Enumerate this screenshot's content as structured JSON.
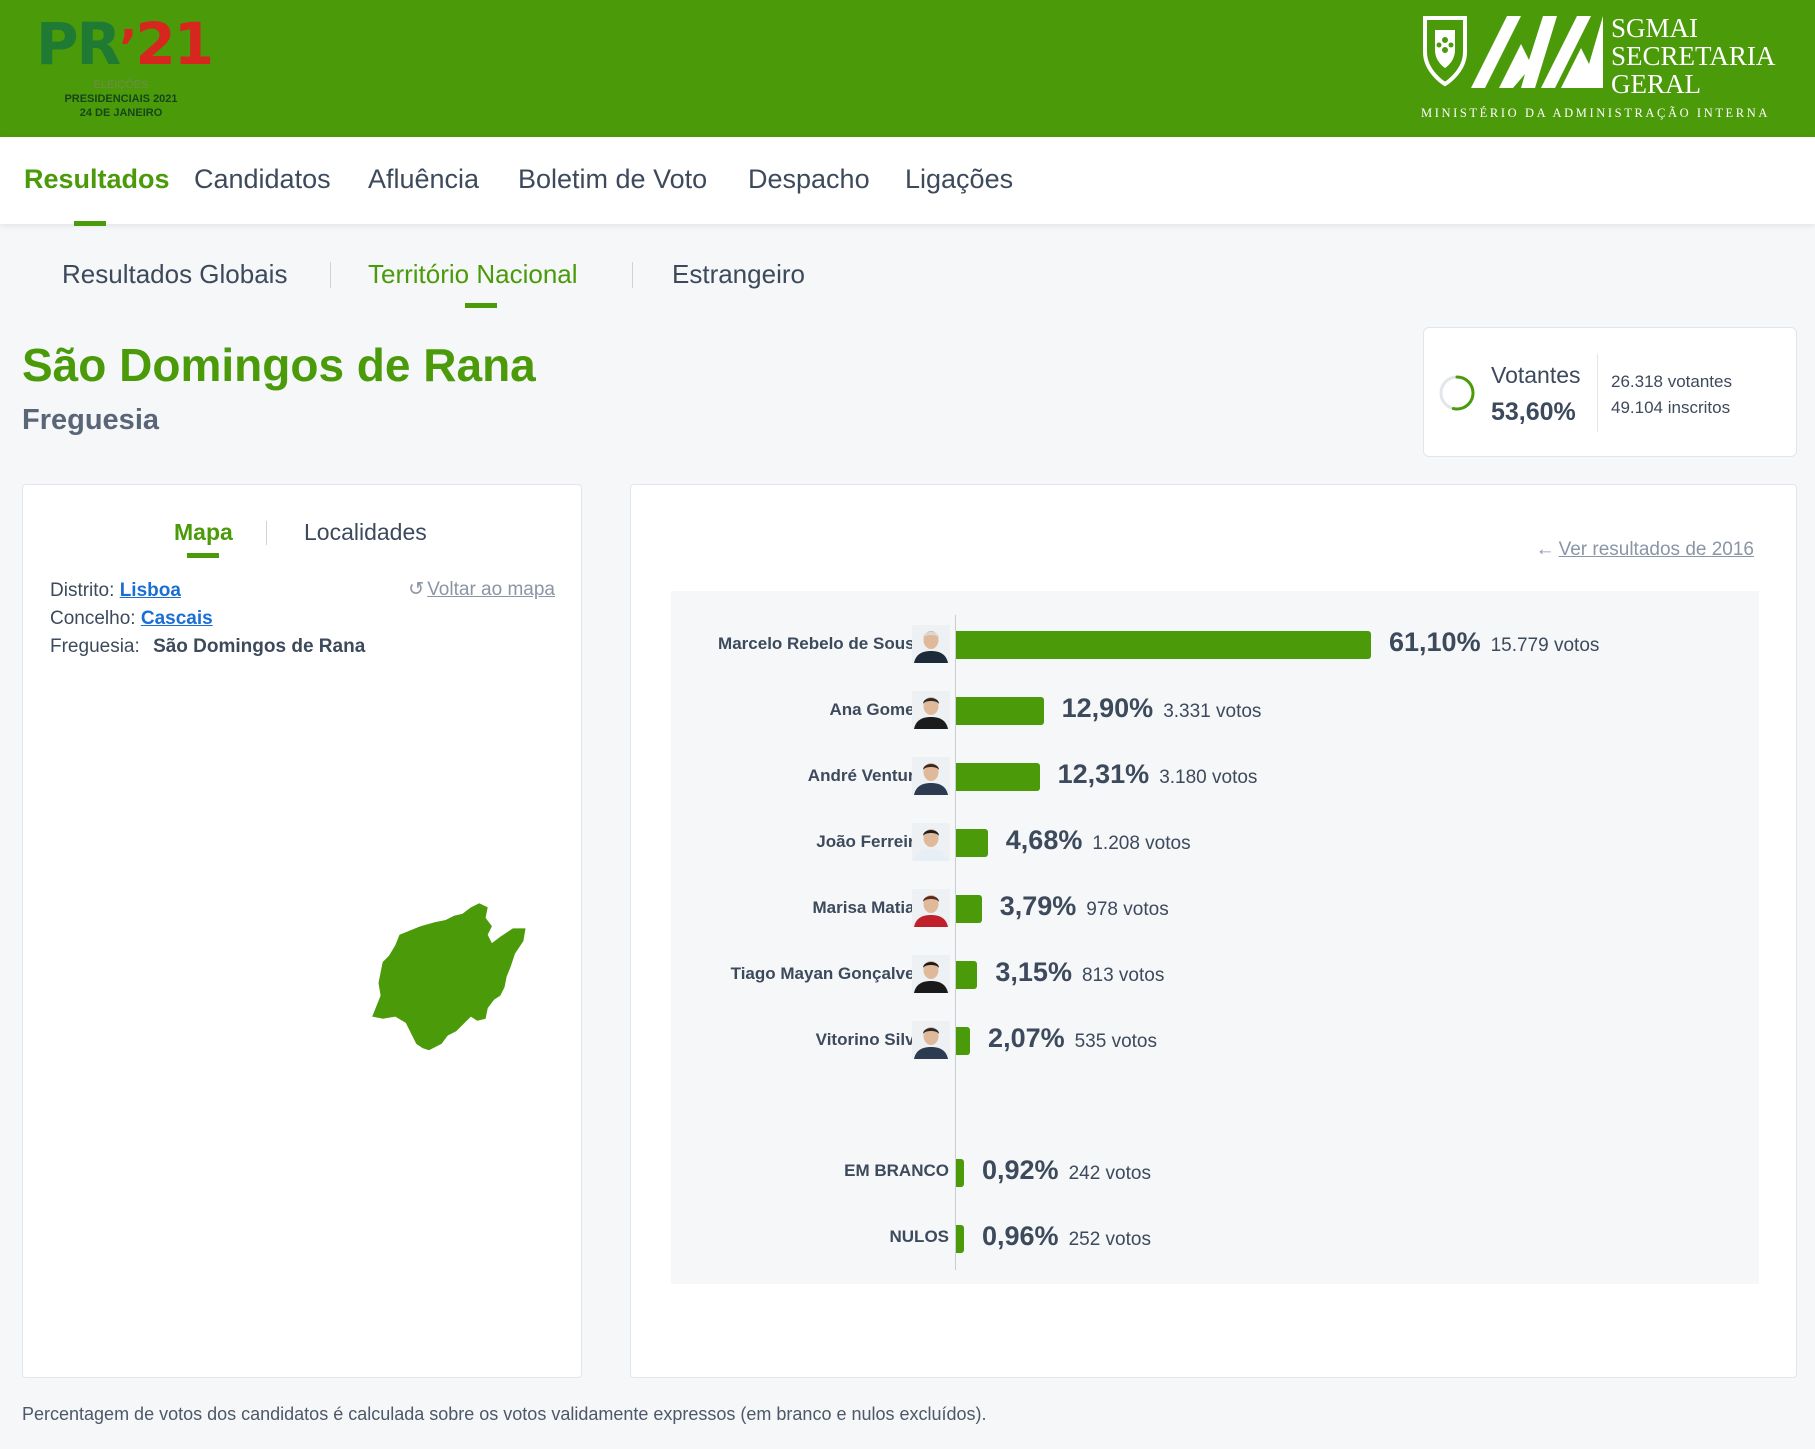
{
  "header": {
    "logo_pr": "PR",
    "logo_year": "21",
    "logo_line1": "ELEIÇÕES",
    "logo_line2": "PRESIDENCIAIS 2021",
    "logo_line3": "24 DE JANEIRO",
    "sg_line1": "SGMAI",
    "sg_line2": "SECRETARIA",
    "sg_line3": "GERAL",
    "sg_ministry": "MINISTÉRIO DA ADMINISTRAÇÃO INTERNA",
    "brand_color": "#4b9a0a"
  },
  "nav": {
    "items": [
      "Resultados",
      "Candidatos",
      "Afluência",
      "Boletim de Voto",
      "Despacho",
      "Ligações"
    ],
    "active": "Resultados"
  },
  "subnav": {
    "items": [
      "Resultados Globais",
      "Território Nacional",
      "Estrangeiro"
    ],
    "active": "Território Nacional"
  },
  "title": "São Domingos de Rana",
  "subtitle": "Freguesia",
  "votantes": {
    "label": "Votantes",
    "percent": "53,60%",
    "voters": "26.318 votantes",
    "registered": "49.104 inscritos",
    "fraction": 0.536
  },
  "left_panel": {
    "tabs": [
      "Mapa",
      "Localidades"
    ],
    "active_tab": "Mapa",
    "distrito_label": "Distrito:",
    "distrito": "Lisboa",
    "concelho_label": "Concelho:",
    "concelho": "Cascais",
    "freguesia_label": "Freguesia:",
    "freguesia": "São Domingos de Rana",
    "back_to_map": "Voltar ao mapa",
    "map_icon": "freguesia-map-shape"
  },
  "right_panel": {
    "results_2016_link": "Ver resultados de 2016"
  },
  "chart_data": {
    "type": "bar",
    "orientation": "horizontal",
    "unit": "%",
    "categories": [
      "Marcelo Rebelo de Sousa",
      "Ana Gomes",
      "André Ventura",
      "João Ferreira",
      "Marisa Matias",
      "Tiago Mayan Gonçalves",
      "Vitorino Silva",
      "EM BRANCO",
      "NULOS"
    ],
    "values": [
      61.1,
      12.9,
      12.31,
      4.68,
      3.79,
      3.15,
      2.07,
      0.92,
      0.96
    ],
    "value_labels": [
      "61,10%",
      "12,90%",
      "12,31%",
      "4,68%",
      "3,79%",
      "3,15%",
      "2,07%",
      "0,92%",
      "0,96%"
    ],
    "votes": [
      "15.779 votos",
      "3.331 votos",
      "3.180 votos",
      "1.208 votos",
      "978 votos",
      "813 votos",
      "535 votos",
      "242 votos",
      "252 votos"
    ],
    "bar_color": "#4b9a0a"
  },
  "footnote": "Percentagem de votos dos candidatos é calculada sobre os votos validamente expressos (em branco e nulos excluídos)."
}
